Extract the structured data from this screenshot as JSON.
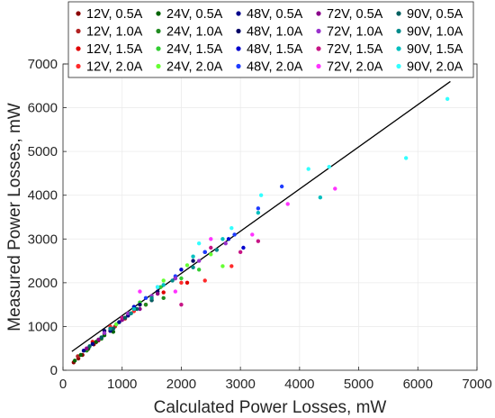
{
  "chart_data": {
    "type": "scatter",
    "xlabel": "Calculated Power Losses, mW",
    "ylabel": "Measured Power Losses, mW",
    "xlim": [
      0,
      7000
    ],
    "ylim": [
      0,
      7000
    ],
    "xticks": [
      "0",
      "1000",
      "2000",
      "3000",
      "4000",
      "5000",
      "6000",
      "7000"
    ],
    "yticks": [
      "0",
      "1000",
      "2000",
      "3000",
      "4000",
      "5000",
      "6000",
      "7000"
    ],
    "grid": true,
    "legend_position": "top",
    "fit_line": {
      "x": [
        150,
        6550
      ],
      "y": [
        430,
        6600
      ],
      "color": "#000000"
    },
    "series": [
      {
        "name": "12V, 0.5A",
        "color": "#8b0000",
        "points": [
          [
            180,
            180
          ],
          [
            260,
            270
          ],
          [
            330,
            350
          ],
          [
            420,
            480
          ],
          [
            520,
            590
          ],
          [
            600,
            680
          ]
        ]
      },
      {
        "name": "12V, 1.0A",
        "color": "#b22222",
        "points": [
          [
            250,
            320
          ],
          [
            400,
            470
          ],
          [
            560,
            640
          ],
          [
            700,
            830
          ],
          [
            880,
            1000
          ],
          [
            1050,
            1180
          ]
        ]
      },
      {
        "name": "12V, 1.5A",
        "color": "#e00000",
        "points": [
          [
            500,
            650
          ],
          [
            800,
            900
          ],
          [
            1100,
            1250
          ],
          [
            1400,
            1500
          ],
          [
            1700,
            1780
          ],
          [
            2100,
            2000
          ]
        ]
      },
      {
        "name": "12V, 2.0A",
        "color": "#ff2a2a",
        "points": [
          [
            800,
            1000
          ],
          [
            1200,
            1350
          ],
          [
            1600,
            1750
          ],
          [
            2000,
            2000
          ],
          [
            2400,
            2050
          ],
          [
            2850,
            2380
          ]
        ]
      },
      {
        "name": "24V, 0.5A",
        "color": "#006400",
        "points": [
          [
            200,
            220
          ],
          [
            300,
            350
          ],
          [
            430,
            500
          ],
          [
            560,
            650
          ],
          [
            700,
            800
          ],
          [
            850,
            880
          ]
        ]
      },
      {
        "name": "24V, 1.0A",
        "color": "#228b22",
        "points": [
          [
            400,
            450
          ],
          [
            650,
            720
          ],
          [
            900,
            1050
          ],
          [
            1150,
            1300
          ],
          [
            1400,
            1500
          ],
          [
            1700,
            1650
          ]
        ]
      },
      {
        "name": "24V, 1.5A",
        "color": "#32cd32",
        "points": [
          [
            600,
            700
          ],
          [
            950,
            1100
          ],
          [
            1300,
            1550
          ],
          [
            1650,
            1900
          ],
          [
            2000,
            2100
          ],
          [
            2300,
            2300
          ]
        ]
      },
      {
        "name": "24V, 2.0A",
        "color": "#66ff33",
        "points": [
          [
            900,
            1050
          ],
          [
            1300,
            1500
          ],
          [
            1700,
            2050
          ],
          [
            2100,
            2400
          ],
          [
            2500,
            2650
          ],
          [
            2700,
            2380
          ]
        ]
      },
      {
        "name": "48V, 0.5A",
        "color": "#00008b",
        "points": [
          [
            350,
            450
          ],
          [
            500,
            600
          ],
          [
            650,
            750
          ],
          [
            800,
            900
          ],
          [
            950,
            1100
          ],
          [
            1100,
            1250
          ]
        ]
      },
      {
        "name": "48V, 1.0A",
        "color": "#000066",
        "points": [
          [
            700,
            900
          ],
          [
            1000,
            1200
          ],
          [
            1300,
            1500
          ],
          [
            1600,
            1800
          ],
          [
            1900,
            2100
          ],
          [
            2200,
            2500
          ]
        ]
      },
      {
        "name": "48V, 1.5A",
        "color": "#0000cd",
        "points": [
          [
            1200,
            1450
          ],
          [
            1600,
            1900
          ],
          [
            2000,
            2300
          ],
          [
            2400,
            2700
          ],
          [
            2800,
            3000
          ],
          [
            3050,
            2800
          ]
        ]
      },
      {
        "name": "48V, 2.0A",
        "color": "#1e3cff",
        "points": [
          [
            1400,
            1650
          ],
          [
            1900,
            2150
          ],
          [
            2400,
            2700
          ],
          [
            2900,
            3100
          ],
          [
            3300,
            3700
          ],
          [
            3700,
            4200
          ]
        ]
      },
      {
        "name": "72V, 0.5A",
        "color": "#8b008b",
        "points": [
          [
            400,
            500
          ],
          [
            600,
            700
          ],
          [
            800,
            950
          ],
          [
            1000,
            1150
          ],
          [
            1300,
            1400
          ],
          [
            1600,
            1750
          ]
        ]
      },
      {
        "name": "72V, 1.0A",
        "color": "#9932cc",
        "points": [
          [
            700,
            850
          ],
          [
            1100,
            1300
          ],
          [
            1500,
            1700
          ],
          [
            1900,
            2100
          ],
          [
            2300,
            2500
          ],
          [
            2750,
            2900
          ]
        ]
      },
      {
        "name": "72V, 1.5A",
        "color": "#c71585",
        "points": [
          [
            1000,
            1200
          ],
          [
            1500,
            1600
          ],
          [
            2000,
            1500
          ],
          [
            2500,
            2800
          ],
          [
            3000,
            2700
          ],
          [
            3300,
            2950
          ]
        ]
      },
      {
        "name": "72V, 2.0A",
        "color": "#ff33ff",
        "points": [
          [
            1300,
            1800
          ],
          [
            1900,
            1800
          ],
          [
            2500,
            3000
          ],
          [
            3200,
            3100
          ],
          [
            3800,
            3800
          ],
          [
            4600,
            4150
          ]
        ]
      },
      {
        "name": "90V, 0.5A",
        "color": "#006060",
        "points": [
          [
            450,
            550
          ],
          [
            650,
            750
          ],
          [
            850,
            950
          ],
          [
            1050,
            1200
          ],
          [
            1250,
            1400
          ],
          [
            1500,
            1600
          ]
        ]
      },
      {
        "name": "90V, 1.0A",
        "color": "#008b8b",
        "points": [
          [
            800,
            950
          ],
          [
            1150,
            1300
          ],
          [
            1500,
            1650
          ],
          [
            1850,
            2050
          ],
          [
            2200,
            2350
          ],
          [
            2600,
            2750
          ]
        ]
      },
      {
        "name": "90V, 1.5A",
        "color": "#00bfbf",
        "points": [
          [
            1200,
            1400
          ],
          [
            1700,
            1950
          ],
          [
            2200,
            2600
          ],
          [
            2700,
            3000
          ],
          [
            3300,
            3600
          ],
          [
            4350,
            3950
          ]
        ]
      },
      {
        "name": "90V, 2.0A",
        "color": "#33ffff",
        "points": [
          [
            1600,
            1900
          ],
          [
            2300,
            2900
          ],
          [
            2850,
            3250
          ],
          [
            3350,
            4000
          ],
          [
            4150,
            4600
          ],
          [
            4500,
            4650
          ],
          [
            5800,
            4850
          ],
          [
            6500,
            6200
          ]
        ]
      }
    ]
  }
}
